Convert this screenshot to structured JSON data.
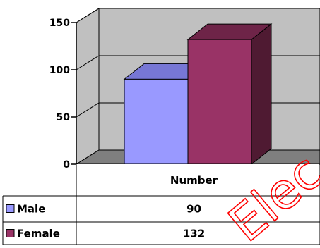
{
  "chart_data": {
    "type": "bar",
    "categories": [
      "Number"
    ],
    "series": [
      {
        "name": "Male",
        "values": [
          90
        ]
      },
      {
        "name": "Female",
        "values": [
          132
        ]
      }
    ],
    "title": "",
    "xlabel": "",
    "ylabel": "",
    "ylim": [
      0,
      150
    ],
    "yticks": [
      0,
      50,
      100,
      150
    ],
    "grid": true,
    "legend": "data-table-left",
    "data_table": [
      {
        "label": "Male",
        "value": "90"
      },
      {
        "label": "Female",
        "value": "132"
      }
    ]
  },
  "colors": {
    "male_front": "#9999ff",
    "male_top": "#7777d5",
    "male_side": "#5555b0",
    "female_front": "#993366",
    "female_top": "#6e2448",
    "female_side": "#4f1a32",
    "wall": "#c0c0c0",
    "floor": "#7f7f7f"
  },
  "watermark": "Elec"
}
